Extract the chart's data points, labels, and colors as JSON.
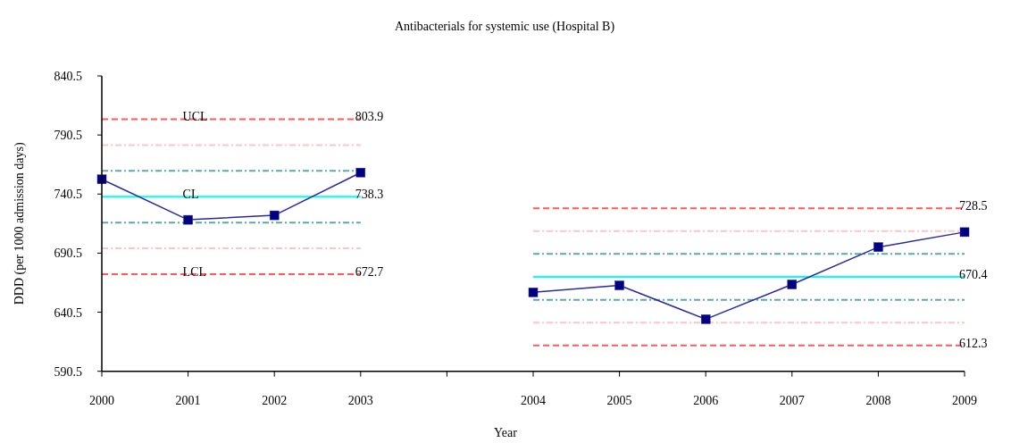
{
  "chart_data": {
    "type": "line",
    "title": "Antibacterials for systemic use (Hospital B)",
    "xlabel": "Year",
    "ylabel": "DDD (per 1000 admission days)",
    "categories": [
      "2000",
      "2001",
      "2002",
      "2003",
      null,
      "2004",
      "2005",
      "2006",
      "2007",
      "2008",
      "2009"
    ],
    "ylim": [
      590.5,
      840.5
    ],
    "yticks": [
      590.5,
      640.5,
      690.5,
      740.5,
      790.5,
      840.5
    ],
    "series": [
      {
        "color": "#ff5a5a",
        "line_style": "dashed",
        "marker": "none",
        "values": [
          803.9,
          803.9,
          803.9,
          803.9,
          null,
          null,
          null,
          null,
          null,
          null,
          null
        ]
      },
      {
        "color": "#ffc4c4",
        "line_style": "dashdot",
        "marker": "none",
        "values": [
          782.0,
          782.0,
          782.0,
          782.0,
          null,
          null,
          null,
          null,
          null,
          null,
          null
        ]
      },
      {
        "color": "#5aaaaa",
        "line_style": "dashdot",
        "marker": "none",
        "values": [
          760.2,
          760.2,
          760.2,
          760.2,
          null,
          null,
          null,
          null,
          null,
          null,
          null
        ]
      },
      {
        "color": "#00ffff",
        "line_style": "solid",
        "marker": "none",
        "values": [
          738.3,
          738.3,
          738.3,
          738.3,
          null,
          null,
          null,
          null,
          null,
          null,
          null
        ]
      },
      {
        "color": "#5aaaaa",
        "line_style": "dashdot",
        "marker": "none",
        "values": [
          716.4,
          716.4,
          716.4,
          716.4,
          null,
          null,
          null,
          null,
          null,
          null,
          null
        ]
      },
      {
        "color": "#ffc4c4",
        "line_style": "dashdot",
        "marker": "none",
        "values": [
          694.6,
          694.6,
          694.6,
          694.6,
          null,
          null,
          null,
          null,
          null,
          null,
          null
        ]
      },
      {
        "color": "#ff5a5a",
        "line_style": "dashed",
        "marker": "none",
        "values": [
          672.7,
          672.7,
          672.7,
          672.7,
          null,
          null,
          null,
          null,
          null,
          null,
          null
        ]
      },
      {
        "color": "#ff5a5a",
        "line_style": "dashed",
        "marker": "none",
        "values": [
          null,
          null,
          null,
          null,
          null,
          728.5,
          728.5,
          728.5,
          728.5,
          728.5,
          728.5
        ]
      },
      {
        "color": "#ffc4c4",
        "line_style": "dashdot",
        "marker": "none",
        "values": [
          null,
          null,
          null,
          null,
          null,
          709.1,
          709.1,
          709.1,
          709.1,
          709.1,
          709.1
        ]
      },
      {
        "color": "#5aaaaa",
        "line_style": "dashdot",
        "marker": "none",
        "values": [
          null,
          null,
          null,
          null,
          null,
          689.8,
          689.8,
          689.8,
          689.8,
          689.8,
          689.8
        ]
      },
      {
        "color": "#00ffff",
        "line_style": "solid",
        "marker": "none",
        "values": [
          null,
          null,
          null,
          null,
          null,
          670.4,
          670.4,
          670.4,
          670.4,
          670.4,
          670.4
        ]
      },
      {
        "color": "#5aaaaa",
        "line_style": "dashdot",
        "marker": "none",
        "values": [
          null,
          null,
          null,
          null,
          null,
          651.0,
          651.0,
          651.0,
          651.0,
          651.0,
          651.0
        ]
      },
      {
        "color": "#ffc4c4",
        "line_style": "dashdot",
        "marker": "none",
        "values": [
          null,
          null,
          null,
          null,
          null,
          631.7,
          631.7,
          631.7,
          631.7,
          631.7,
          631.7
        ]
      },
      {
        "color": "#ff5a5a",
        "line_style": "dashed",
        "marker": "none",
        "values": [
          null,
          null,
          null,
          null,
          null,
          612.3,
          612.3,
          612.3,
          612.3,
          612.3,
          612.3
        ]
      },
      {
        "color": "#2a2aa0",
        "line_style": "solid",
        "marker": "square",
        "values": [
          753.0,
          718.7,
          722.5,
          758.7,
          null,
          657.3,
          663.2,
          634.6,
          664.0,
          695.6,
          708.3
        ]
      }
    ],
    "annotations": [
      {
        "text": "UCL",
        "x": "2001",
        "y": 803.9
      },
      {
        "text": "CL",
        "x": "2001",
        "y": 738.3
      },
      {
        "text": "LCL",
        "x": "2001",
        "y": 672.7
      },
      {
        "text": "803.9",
        "x": "2003",
        "y": 803.9
      },
      {
        "text": "738.3",
        "x": "2003",
        "y": 738.3
      },
      {
        "text": "672.7",
        "x": "2003",
        "y": 672.7
      },
      {
        "text": "728.5",
        "x": "2009",
        "y": 728.5
      },
      {
        "text": "670.4",
        "x": "2009",
        "y": 670.4
      },
      {
        "text": "612.3",
        "x": "2009",
        "y": 612.3
      }
    ]
  }
}
